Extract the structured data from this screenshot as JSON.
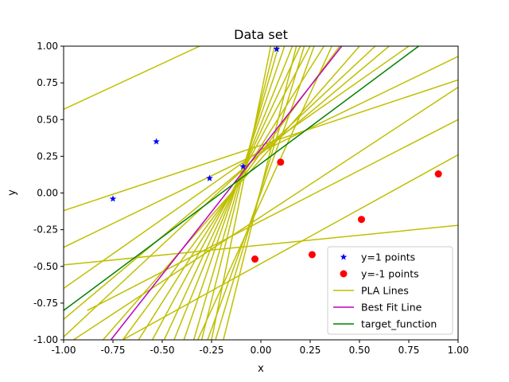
{
  "chart_data": {
    "type": "scatter",
    "title": "Data set",
    "xlabel": "x",
    "ylabel": "y",
    "xlim": [
      -1.0,
      1.0
    ],
    "ylim": [
      -1.0,
      1.0
    ],
    "xticks": [
      "-1.00",
      "-0.75",
      "-0.50",
      "-0.25",
      "0.00",
      "0.25",
      "0.50",
      "0.75",
      "1.00"
    ],
    "yticks": [
      "-1.00",
      "-0.75",
      "-0.50",
      "-0.25",
      "0.00",
      "0.25",
      "0.50",
      "0.75",
      "1.00"
    ],
    "grid": false,
    "legend_position": "bottom-right",
    "series": [
      {
        "name": "y=1 points",
        "kind": "points",
        "marker": "star",
        "color": "#0000ff",
        "points": [
          [
            -0.75,
            -0.04
          ],
          [
            -0.53,
            0.35
          ],
          [
            -0.26,
            0.1
          ],
          [
            -0.09,
            0.18
          ],
          [
            0.08,
            0.98
          ]
        ]
      },
      {
        "name": "y=-1 points",
        "kind": "points",
        "marker": "circle",
        "color": "#ff0000",
        "points": [
          [
            -0.03,
            -0.45
          ],
          [
            0.1,
            0.21
          ],
          [
            0.26,
            -0.42
          ],
          [
            0.51,
            -0.18
          ],
          [
            0.9,
            0.13
          ]
        ]
      },
      {
        "name": "PLA Lines",
        "kind": "lines",
        "color": "#bfbf00",
        "lines": [
          [
            [
              -1.0,
              0.57
            ],
            [
              -0.31,
              1.0
            ]
          ],
          [
            [
              -1.0,
              -0.12
            ],
            [
              1.0,
              0.77
            ]
          ],
          [
            [
              -1.0,
              -0.37
            ],
            [
              1.0,
              0.93
            ]
          ],
          [
            [
              -1.0,
              -0.65
            ],
            [
              0.75,
              1.0
            ]
          ],
          [
            [
              -1.0,
              -0.86
            ],
            [
              0.65,
              1.0
            ]
          ],
          [
            [
              -1.0,
              -0.49
            ],
            [
              1.0,
              -0.22
            ]
          ],
          [
            [
              -0.8,
              -1.0
            ],
            [
              0.5,
              1.0
            ]
          ],
          [
            [
              -0.7,
              -1.0
            ],
            [
              0.4,
              1.0
            ]
          ],
          [
            [
              -0.62,
              -1.0
            ],
            [
              0.32,
              1.0
            ]
          ],
          [
            [
              -0.55,
              -1.0
            ],
            [
              0.25,
              1.0
            ]
          ],
          [
            [
              -0.49,
              -1.0
            ],
            [
              0.2,
              1.0
            ]
          ],
          [
            [
              -0.44,
              -1.0
            ],
            [
              0.16,
              1.0
            ]
          ],
          [
            [
              -0.39,
              -1.0
            ],
            [
              0.12,
              1.0
            ]
          ],
          [
            [
              -0.34,
              -1.0
            ],
            [
              0.09,
              1.0
            ]
          ],
          [
            [
              -0.3,
              -1.0
            ],
            [
              0.07,
              1.0
            ]
          ],
          [
            [
              -0.32,
              -1.0
            ],
            [
              0.36,
              1.0
            ]
          ],
          [
            [
              -0.27,
              -1.0
            ],
            [
              0.27,
              1.0
            ]
          ],
          [
            [
              -0.23,
              -1.0
            ],
            [
              0.22,
              1.0
            ]
          ],
          [
            [
              -0.19,
              -1.0
            ],
            [
              0.18,
              1.0
            ]
          ],
          [
            [
              -0.88,
              -0.8
            ],
            [
              1.0,
              0.5
            ]
          ],
          [
            [
              -0.7,
              -1.0
            ],
            [
              1.0,
              0.26
            ]
          ],
          [
            [
              -0.95,
              -1.0
            ],
            [
              1.0,
              0.72
            ]
          ],
          [
            [
              -1.0,
              -0.98
            ],
            [
              0.58,
              1.0
            ]
          ],
          [
            [
              -0.25,
              -1.0
            ],
            [
              0.05,
              1.0
            ]
          ]
        ]
      },
      {
        "name": "Best Fit Line",
        "kind": "lines",
        "color": "#bf00bf",
        "lines": [
          [
            [
              -0.76,
              -1.0
            ],
            [
              0.41,
              1.0
            ]
          ]
        ]
      },
      {
        "name": "target_function",
        "kind": "lines",
        "color": "#008000",
        "lines": [
          [
            [
              -1.0,
              -0.8
            ],
            [
              0.8,
              1.0
            ]
          ]
        ]
      }
    ]
  }
}
